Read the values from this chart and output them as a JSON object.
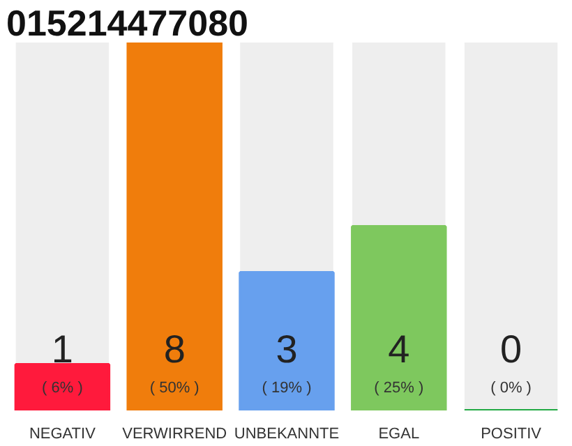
{
  "chart_data": {
    "type": "bar",
    "title": "015214477080",
    "categories": [
      "NEGATIV",
      "VERWIRREND",
      "UNBEKANNTE",
      "EGAL",
      "POSITIV"
    ],
    "values": [
      1,
      8,
      3,
      4,
      0
    ],
    "colors": [
      "#ff1a3c",
      "#f07d0c",
      "#67a0ee",
      "#7ec85e",
      "#22aa44"
    ],
    "tick_labels": "x",
    "data_labels": true,
    "annotations": [
      "( 6% )",
      "( 50% )",
      "( 19% )",
      "( 25% )",
      "( 0% )"
    ]
  }
}
